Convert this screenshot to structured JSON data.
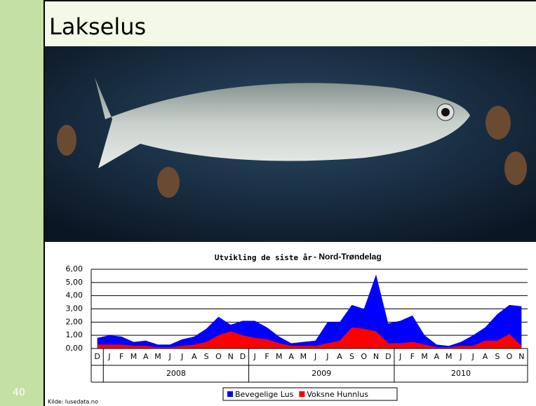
{
  "slide": {
    "title": "Lakselus",
    "number": "40",
    "source": "Kilde: lusedata.no"
  },
  "chart_data": {
    "type": "area",
    "title": "Utvikling de siste år",
    "subtitle": " - Nord-Trøndelag",
    "groups": [
      {
        "label": null,
        "categories": [
          "D"
        ]
      },
      {
        "label": "2008",
        "categories": [
          "J",
          "F",
          "M",
          "A",
          "M",
          "J",
          "J",
          "A",
          "S",
          "O",
          "N",
          "D"
        ]
      },
      {
        "label": "2009",
        "categories": [
          "J",
          "F",
          "M",
          "A",
          "M",
          "J",
          "J",
          "A",
          "S",
          "O",
          "N",
          "D"
        ]
      },
      {
        "label": "2010",
        "categories": [
          "J",
          "F",
          "M",
          "A",
          "M",
          "J",
          "J",
          "A",
          "S",
          "O",
          "N"
        ]
      }
    ],
    "series": [
      {
        "name": "Bevegelige Lus",
        "color": "#0000ff",
        "values": [
          0.8,
          1.0,
          0.9,
          0.5,
          0.6,
          0.3,
          0.3,
          0.7,
          0.9,
          1.5,
          2.4,
          1.8,
          2.1,
          2.1,
          1.6,
          0.9,
          0.4,
          0.5,
          0.6,
          2.0,
          2.0,
          3.3,
          3.0,
          5.6,
          1.9,
          2.1,
          2.5,
          1.0,
          0.3,
          0.2,
          0.5,
          1.0,
          1.6,
          2.6,
          3.3,
          3.2
        ]
      },
      {
        "name": "Voksne Hunnlus",
        "color": "#ff0000",
        "values": [
          0.3,
          0.3,
          0.3,
          0.2,
          0.2,
          0.1,
          0.1,
          0.2,
          0.3,
          0.5,
          1.0,
          1.3,
          1.0,
          0.8,
          0.7,
          0.4,
          0.2,
          0.2,
          0.2,
          0.4,
          0.6,
          1.6,
          1.5,
          1.3,
          0.4,
          0.4,
          0.5,
          0.3,
          0.1,
          0.1,
          0.2,
          0.2,
          0.6,
          0.6,
          1.1,
          0.2
        ]
      }
    ],
    "ylim": [
      0,
      6
    ],
    "yticks": [
      {
        "value": 0,
        "label": "0,00"
      },
      {
        "value": 1,
        "label": "1,00"
      },
      {
        "value": 2,
        "label": "2,00"
      },
      {
        "value": 3,
        "label": "3,00"
      },
      {
        "value": 4,
        "label": "4,00"
      },
      {
        "value": 5,
        "label": "5,00"
      },
      {
        "value": 6,
        "label": "6,00"
      }
    ],
    "grid": true
  }
}
